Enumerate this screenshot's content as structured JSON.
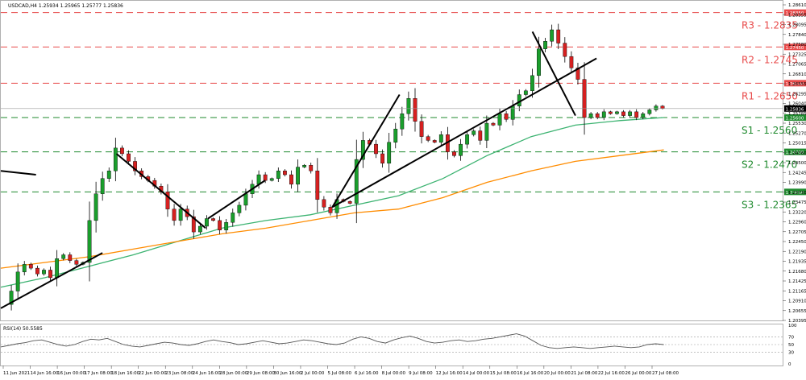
{
  "header": {
    "symbol_info": "USDCAD,H4  1.25934 1.25965 1.25777 1.25836",
    "rsi_info": "RSI(14) 50.5585"
  },
  "chart_data": {
    "type": "candlestick",
    "symbol": "USDCAD",
    "timeframe": "H4",
    "ohlc_header": {
      "open": 1.25934,
      "high": 1.25965,
      "low": 1.25777,
      "close": 1.25836
    },
    "current_price_label": "1.25836",
    "ylim": [
      1.2028,
      1.2866
    ],
    "y_ticks": [
      "1.28610",
      "1.28355",
      "1.28095",
      "1.27840",
      "1.27580",
      "1.27325",
      "1.27065",
      "1.26810",
      "1.26555",
      "1.26295",
      "1.26040",
      "1.25785",
      "1.25530",
      "1.25270",
      "1.25015",
      "1.24760",
      "1.24500",
      "1.24245",
      "1.23990",
      "1.23730",
      "1.23475",
      "1.23220",
      "1.22960",
      "1.22705",
      "1.22450",
      "1.22190",
      "1.21935",
      "1.21680",
      "1.21425",
      "1.21165",
      "1.20910",
      "1.20655",
      "1.20395"
    ],
    "x_ticks": [
      "11 Jun 2021",
      "14 Jun 16:00",
      "16 Jun 00:00",
      "17 Jun 08:00",
      "18 Jun 16:00",
      "22 Jun 00:00",
      "23 Jun 08:00",
      "24 Jun 16:00",
      "28 Jun 00:00",
      "29 Jun 08:00",
      "30 Jun 16:00",
      "2 Jul 00:00",
      "5 Jul 08:00",
      "6 Jul 16:00",
      "8 Jul 00:00",
      "9 Jul 08:00",
      "12 Jul 16:00",
      "14 Jul 00:00",
      "15 Jul 08:00",
      "16 Jul 16:00",
      "20 Jul 00:00",
      "21 Jul 08:00",
      "22 Jul 16:00",
      "26 Jul 00:00",
      "27 Jul 08:00"
    ],
    "levels": [
      {
        "name": "R3",
        "label": "R3 - 1.2835",
        "value": 1.2835,
        "tag": "1.28350",
        "color": "#e84a4a",
        "kind": "resistance"
      },
      {
        "name": "R2",
        "label": "R2 - 1.2745",
        "value": 1.2745,
        "tag": "1.27450",
        "color": "#e84a4a",
        "kind": "resistance"
      },
      {
        "name": "R1",
        "label": "R1 - 1.2650",
        "value": 1.265,
        "tag": "1.26500",
        "color": "#e84a4a",
        "kind": "resistance"
      },
      {
        "name": "S1",
        "label": "S1 - 1.2560",
        "value": 1.256,
        "tag": "1.25600",
        "color": "#1f8a2e",
        "kind": "support"
      },
      {
        "name": "S2",
        "label": "S2 - 1.2470",
        "value": 1.247,
        "tag": "1.24700",
        "color": "#1f8a2e",
        "kind": "support"
      },
      {
        "name": "S3",
        "label": "S3 - 1.2365",
        "value": 1.2365,
        "tag": "1.23650",
        "color": "#1f8a2e",
        "kind": "support"
      }
    ],
    "price_path": [
      1.207,
      1.2105,
      1.2155,
      1.2175,
      1.2165,
      1.215,
      1.216,
      1.214,
      1.219,
      1.22,
      1.2185,
      1.2175,
      1.218,
      1.229,
      1.236,
      1.24,
      1.242,
      1.248,
      1.2465,
      1.2445,
      1.242,
      1.2405,
      1.2395,
      1.238,
      1.2365,
      1.232,
      1.229,
      1.232,
      1.23,
      1.226,
      1.2275,
      1.2295,
      1.229,
      1.2265,
      1.2285,
      1.231,
      1.233,
      1.236,
      1.2385,
      1.241,
      1.2395,
      1.24,
      1.242,
      1.241,
      1.2385,
      1.243,
      1.2435,
      1.242,
      1.2345,
      1.2325,
      1.231,
      1.2345,
      1.234,
      1.2335,
      1.245,
      1.25,
      1.249,
      1.2465,
      1.244,
      1.2495,
      1.253,
      1.257,
      1.261,
      1.255,
      1.251,
      1.25,
      1.2495,
      1.2515,
      1.247,
      1.246,
      1.249,
      1.2515,
      1.2525,
      1.25,
      1.2545,
      1.254,
      1.257,
      1.2555,
      1.259,
      1.262,
      1.263,
      1.267,
      1.274,
      1.276,
      1.279,
      1.2755,
      1.272,
      1.269,
      1.266,
      1.256,
      1.257,
      1.256,
      1.2575,
      1.257,
      1.2575,
      1.2565,
      1.2575,
      1.256,
      1.257,
      1.258,
      1.259,
      1.2584
    ],
    "ma_fast": {
      "name": "",
      "color": "#3cb371",
      "values": [
        1.2115,
        1.214,
        1.217,
        1.22,
        1.2235,
        1.227,
        1.229,
        1.2305,
        1.233,
        1.2355,
        1.24,
        1.246,
        1.251,
        1.254,
        1.2552,
        1.256
      ]
    },
    "ma_slow": {
      "name": "",
      "color": "#ff8c00",
      "values": [
        1.2165,
        1.218,
        1.2195,
        1.2215,
        1.2235,
        1.2255,
        1.227,
        1.229,
        1.231,
        1.232,
        1.235,
        1.239,
        1.242,
        1.2445,
        1.246,
        1.2475
      ]
    },
    "trendlines": [
      {
        "from": [
          0,
          1.206
        ],
        "to": [
          0.13,
          1.2205
        ]
      },
      {
        "from": [
          0.148,
          1.2465
        ],
        "to": [
          0.262,
          1.227
        ]
      },
      {
        "from": [
          0.265,
          1.2295
        ],
        "to": [
          0.338,
          1.2395
        ]
      },
      {
        "from": [
          0.424,
          1.2325
        ],
        "to": [
          0.51,
          1.262
        ]
      },
      {
        "from": [
          0.424,
          1.2325
        ],
        "to": [
          0.762,
          1.2715
        ]
      },
      {
        "from": [
          0.68,
          1.2785
        ],
        "to": [
          0.735,
          1.2565
        ]
      },
      {
        "from": [
          0.0,
          1.242
        ],
        "to": [
          0.045,
          1.241
        ]
      }
    ],
    "rsi": {
      "label": "RSI(14) 50.5585",
      "value": 50.5585,
      "levels": [
        70,
        50,
        30
      ],
      "y_ticks": [
        "100",
        "70",
        "50",
        "30",
        "0"
      ],
      "ylim": [
        0,
        100
      ],
      "values": [
        44,
        48,
        52,
        55,
        60,
        62,
        56,
        50,
        46,
        50,
        58,
        64,
        62,
        66,
        58,
        50,
        46,
        44,
        48,
        52,
        56,
        54,
        50,
        48,
        52,
        58,
        62,
        58,
        55,
        50,
        52,
        56,
        60,
        56,
        52,
        54,
        58,
        62,
        60,
        56,
        52,
        50,
        54,
        64,
        70,
        66,
        58,
        54,
        62,
        68,
        72,
        66,
        58,
        54,
        56,
        60,
        62,
        58,
        60,
        64,
        66,
        70,
        74,
        78,
        72,
        60,
        48,
        42,
        40,
        42,
        44,
        42,
        40,
        42,
        44,
        46,
        44,
        42,
        44,
        50,
        52,
        50
      ]
    }
  }
}
